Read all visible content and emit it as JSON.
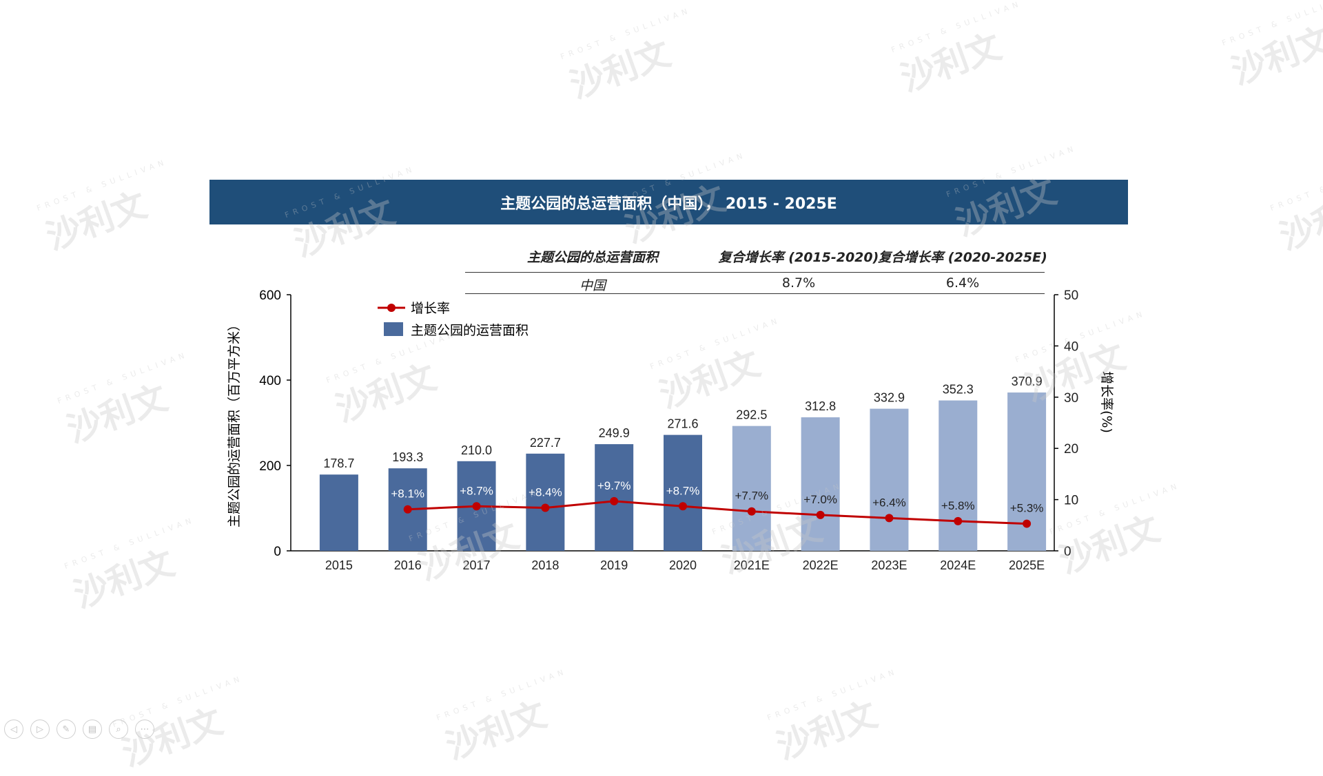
{
  "title": "主题公园的总运营面积（中国）， 2015 - 2025E",
  "cagr_table": {
    "headers": [
      "主题公园的总运营面积",
      "复合增长率 (2015-2020)",
      "复合增长率 (2020-2025E)"
    ],
    "row": [
      "中国",
      "8.7%",
      "6.4%"
    ]
  },
  "watermark_text": "沙利文",
  "watermark_sub": "FROST & SULLIVAN",
  "nav_icons": [
    "prev-icon",
    "next-icon",
    "pen-icon",
    "slides-icon",
    "zoom-icon",
    "more-icon"
  ],
  "nav_glyphs": [
    "◁",
    "▷",
    "✎",
    "▤",
    "⌕",
    "⋯"
  ],
  "chart_data": {
    "type": "bar",
    "categories": [
      "2015",
      "2016",
      "2017",
      "2018",
      "2019",
      "2020",
      "2021E",
      "2022E",
      "2023E",
      "2024E",
      "2025E"
    ],
    "series": [
      {
        "name": "主题公园的运营面积",
        "type": "bar",
        "axis": "left",
        "values": [
          178.7,
          193.3,
          210.0,
          227.7,
          249.9,
          271.6,
          292.5,
          312.8,
          332.9,
          352.3,
          370.9
        ],
        "labels": [
          "178.7",
          "193.3",
          "210.0",
          "227.7",
          "249.9",
          "271.6",
          "292.5",
          "312.8",
          "332.9",
          "352.3",
          "370.9"
        ],
        "colors": {
          "actual": "#4a6a9c",
          "forecast": "#9aaed0"
        }
      },
      {
        "name": "增长率",
        "type": "line",
        "axis": "right",
        "values": [
          null,
          8.1,
          8.7,
          8.4,
          9.7,
          8.7,
          7.7,
          7.0,
          6.4,
          5.8,
          5.3
        ],
        "labels": [
          "",
          "+8.1%",
          "+8.7%",
          "+8.4%",
          "+9.7%",
          "+8.7%",
          "+7.7%",
          "+7.0%",
          "+6.4%",
          "+5.8%",
          "+5.3%"
        ],
        "color": "#c00000"
      }
    ],
    "ylabel": "主题公园的运营面积（百万平方米）",
    "y2label": "增长率(%)",
    "ylim": [
      0,
      600
    ],
    "yticks": [
      0,
      200,
      400,
      600
    ],
    "y2lim": [
      0,
      50
    ],
    "y2ticks": [
      0,
      10,
      20,
      30,
      40,
      50
    ],
    "forecast_start_index": 6,
    "legend_position": "top-left",
    "grid": false
  }
}
